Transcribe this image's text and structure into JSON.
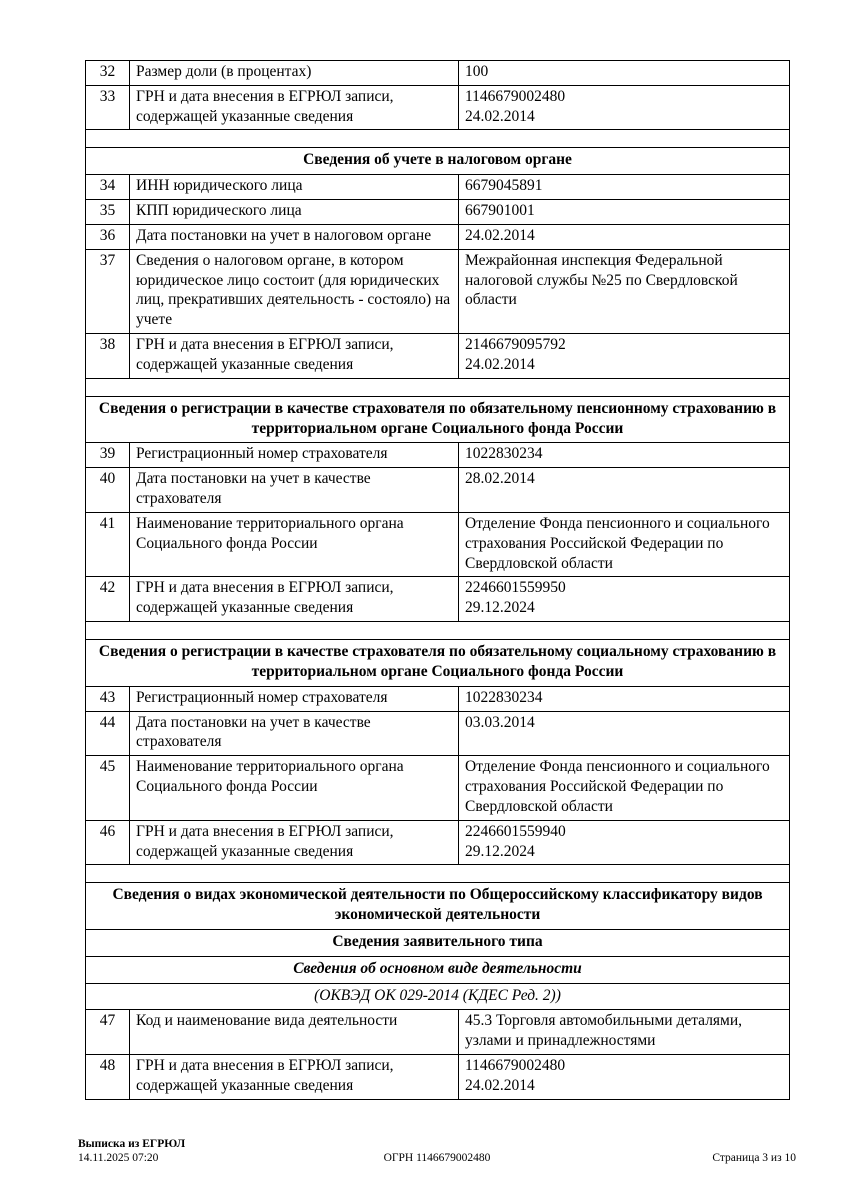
{
  "document": {
    "table": {
      "rows": [
        {
          "type": "data",
          "num": "32",
          "label": "Размер доли (в процентах)",
          "value": "100"
        },
        {
          "type": "data",
          "num": "33",
          "label": "ГРН и дата внесения в ЕГРЮЛ записи, содержащей указанные сведения",
          "value": "1146679002480\n24.02.2014"
        },
        {
          "type": "spacer"
        },
        {
          "type": "header",
          "style": "bold",
          "text": "Сведения об учете в налоговом органе"
        },
        {
          "type": "data",
          "num": "34",
          "label": "ИНН юридического лица",
          "value": "6679045891"
        },
        {
          "type": "data",
          "num": "35",
          "label": "КПП юридического лица",
          "value": "667901001"
        },
        {
          "type": "data",
          "num": "36",
          "label": "Дата постановки на учет в налоговом органе",
          "value": "24.02.2014"
        },
        {
          "type": "data",
          "num": "37",
          "label": "Сведения о налоговом органе, в котором юридическое лицо состоит (для юридических лиц, прекративших деятельность - состояло) на учете",
          "value": "Межрайонная инспекция Федеральной налоговой службы №25 по Свердловской области"
        },
        {
          "type": "data",
          "num": "38",
          "label": "ГРН и дата внесения в ЕГРЮЛ записи, содержащей указанные сведения",
          "value": "2146679095792\n24.02.2014"
        },
        {
          "type": "spacer"
        },
        {
          "type": "header",
          "style": "bold",
          "text": "Сведения о регистрации в качестве страхователя по обязательному пенсионному страхованию в территориальном органе Социального фонда России"
        },
        {
          "type": "data",
          "num": "39",
          "label": "Регистрационный номер страхователя",
          "value": "1022830234"
        },
        {
          "type": "data",
          "num": "40",
          "label": "Дата постановки на учет в качестве страхователя",
          "value": "28.02.2014"
        },
        {
          "type": "data",
          "num": "41",
          "label": "Наименование территориального органа Социального фонда России",
          "value": "Отделение Фонда пенсионного и социального страхования Российской Федерации по Свердловской области"
        },
        {
          "type": "data",
          "num": "42",
          "label": "ГРН и дата внесения в ЕГРЮЛ записи, содержащей указанные сведения",
          "value": "2246601559950\n29.12.2024"
        },
        {
          "type": "spacer"
        },
        {
          "type": "header",
          "style": "bold",
          "text": "Сведения о регистрации в качестве страхователя по обязательному социальному страхованию в территориальном органе Социального фонда России"
        },
        {
          "type": "data",
          "num": "43",
          "label": "Регистрационный номер страхователя",
          "value": "1022830234"
        },
        {
          "type": "data",
          "num": "44",
          "label": "Дата постановки на учет в качестве страхователя",
          "value": "03.03.2014"
        },
        {
          "type": "data",
          "num": "45",
          "label": "Наименование территориального органа Социального фонда России",
          "value": "Отделение Фонда пенсионного и социального страхования Российской Федерации по Свердловской области"
        },
        {
          "type": "data",
          "num": "46",
          "label": "ГРН и дата внесения в ЕГРЮЛ записи, содержащей указанные сведения",
          "value": "2246601559940\n29.12.2024"
        },
        {
          "type": "spacer"
        },
        {
          "type": "header",
          "style": "bold",
          "text": "Сведения о видах экономической деятельности по Общероссийскому классификатору видов экономической деятельности"
        },
        {
          "type": "header",
          "style": "bold",
          "text": "Сведения заявительного типа"
        },
        {
          "type": "header",
          "style": "bold-italic",
          "text": "Сведения об основном виде деятельности"
        },
        {
          "type": "header",
          "style": "italic",
          "text": "(ОКВЭД ОК 029-2014 (КДЕС Ред. 2))"
        },
        {
          "type": "data",
          "num": "47",
          "label": "Код и наименование вида деятельности",
          "value": "45.3 Торговля автомобильными деталями, узлами и принадлежностями"
        },
        {
          "type": "data",
          "num": "48",
          "label": "ГРН и дата внесения в ЕГРЮЛ записи, содержащей указанные сведения",
          "value": "1146679002480\n24.02.2014"
        }
      ]
    },
    "footer": {
      "title": "Выписка из ЕГРЮЛ",
      "datetime": "14.11.2025 07:20",
      "ogrn": "ОГРН 1146679002480",
      "page": "Страница 3 из 10"
    }
  }
}
